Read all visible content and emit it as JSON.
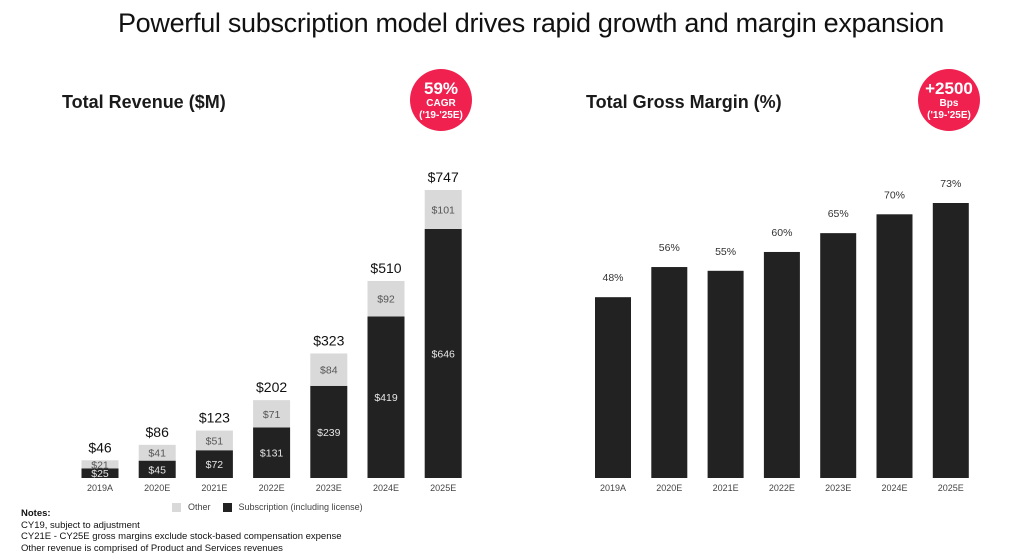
{
  "page": {
    "title": "Powerful subscription model drives rapid growth and margin expansion"
  },
  "left_panel": {
    "title": "Total Revenue ($M)",
    "badge": {
      "big": "59%",
      "line1": "CAGR",
      "line2": "('19-'25E)",
      "color": "#f0214f"
    }
  },
  "right_panel": {
    "title": "Total Gross Margin (%)",
    "badge": {
      "big": "+2500",
      "line1": "Bps",
      "line2": "('19-'25E)",
      "color": "#f0214f"
    }
  },
  "legend": {
    "items": [
      {
        "label": "Other",
        "color": "#d9d9d9"
      },
      {
        "label": "Subscription (including license)",
        "color": "#222222"
      }
    ]
  },
  "notes": {
    "heading": "Notes:",
    "lines": [
      "CY19, subject to adjustment",
      "CY21E - CY25E gross margins exclude stock-based compensation expense",
      "Other revenue is comprised of Product and Services revenues"
    ]
  },
  "chart_data": [
    {
      "type": "bar",
      "stacked": true,
      "title": "Total Revenue ($M)",
      "xlabel": "",
      "ylabel": "",
      "categories": [
        "2019A",
        "2020E",
        "2021E",
        "2022E",
        "2023E",
        "2024E",
        "2025E"
      ],
      "series": [
        {
          "name": "Subscription (including license)",
          "color": "#222222",
          "values": [
            25,
            45,
            72,
            131,
            239,
            419,
            646
          ],
          "labels": [
            "$25",
            "$45",
            "$72",
            "$131",
            "$239",
            "$419",
            "$646"
          ]
        },
        {
          "name": "Other",
          "color": "#d9d9d9",
          "values": [
            21,
            41,
            51,
            71,
            84,
            92,
            101
          ],
          "labels": [
            "$21",
            "$41",
            "$51",
            "$71",
            "$84",
            "$92",
            "$101"
          ]
        }
      ],
      "totals": [
        46,
        86,
        123,
        202,
        323,
        510,
        747
      ],
      "total_labels": [
        "$46",
        "$86",
        "$123",
        "$202",
        "$323",
        "$510",
        "$747"
      ],
      "ylim": [
        0,
        747
      ],
      "grid": false,
      "legend": "bottom"
    },
    {
      "type": "bar",
      "title": "Total Gross Margin (%)",
      "xlabel": "",
      "ylabel": "",
      "categories": [
        "2019A",
        "2020E",
        "2021E",
        "2022E",
        "2023E",
        "2024E",
        "2025E"
      ],
      "values": [
        48,
        56,
        55,
        60,
        65,
        70,
        73
      ],
      "labels": [
        "48%",
        "56%",
        "55%",
        "60%",
        "65%",
        "70%",
        "73%"
      ],
      "color": "#222222",
      "ylim": [
        0,
        73
      ],
      "grid": false
    }
  ]
}
